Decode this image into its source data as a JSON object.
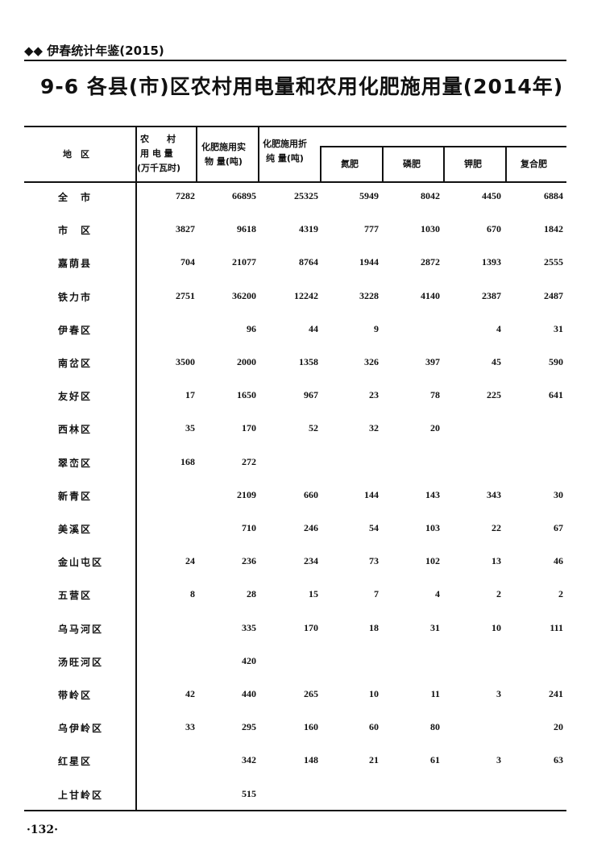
{
  "running_head": "◆◆ 伊春统计年鉴(2015)",
  "title": "9-6  各县(市)区农村用电量和农用化肥施用量(2014年)",
  "headers": {
    "region": "地　区",
    "electricity_line1": "农　　村",
    "electricity_line2": "用 电 量",
    "electricity_line3": "(万千瓦时)",
    "fert_actual_line1": "化肥施用实",
    "fert_actual_line2": "物 量(吨)",
    "fert_pure_line1": "化肥施用折",
    "fert_pure_line2": "纯 量(吨)",
    "nitrogen": "氮肥",
    "phosphate": "磷肥",
    "potash": "钾肥",
    "compound": "复合肥"
  },
  "rows": [
    {
      "region": "全　市",
      "values": [
        "7282",
        "66895",
        "25325",
        "5949",
        "8042",
        "4450",
        "6884"
      ]
    },
    {
      "region": "市　区",
      "values": [
        "3827",
        "9618",
        "4319",
        "777",
        "1030",
        "670",
        "1842"
      ]
    },
    {
      "region": "嘉荫县",
      "values": [
        "704",
        "21077",
        "8764",
        "1944",
        "2872",
        "1393",
        "2555"
      ]
    },
    {
      "region": "铁力市",
      "values": [
        "2751",
        "36200",
        "12242",
        "3228",
        "4140",
        "2387",
        "2487"
      ]
    },
    {
      "region": "伊春区",
      "values": [
        "",
        "96",
        "44",
        "9",
        "",
        "4",
        "31"
      ]
    },
    {
      "region": "南岔区",
      "values": [
        "3500",
        "2000",
        "1358",
        "326",
        "397",
        "45",
        "590"
      ]
    },
    {
      "region": "友好区",
      "values": [
        "17",
        "1650",
        "967",
        "23",
        "78",
        "225",
        "641"
      ]
    },
    {
      "region": "西林区",
      "values": [
        "35",
        "170",
        "52",
        "32",
        "20",
        "",
        ""
      ]
    },
    {
      "region": "翠峦区",
      "values": [
        "168",
        "272",
        "",
        "",
        "",
        "",
        ""
      ]
    },
    {
      "region": "新青区",
      "values": [
        "",
        "2109",
        "660",
        "144",
        "143",
        "343",
        "30"
      ]
    },
    {
      "region": "美溪区",
      "values": [
        "",
        "710",
        "246",
        "54",
        "103",
        "22",
        "67"
      ]
    },
    {
      "region": "金山屯区",
      "values": [
        "24",
        "236",
        "234",
        "73",
        "102",
        "13",
        "46"
      ]
    },
    {
      "region": "五营区",
      "values": [
        "8",
        "28",
        "15",
        "7",
        "4",
        "2",
        "2"
      ]
    },
    {
      "region": "乌马河区",
      "values": [
        "",
        "335",
        "170",
        "18",
        "31",
        "10",
        "111"
      ]
    },
    {
      "region": "汤旺河区",
      "values": [
        "",
        "420",
        "",
        "",
        "",
        "",
        ""
      ]
    },
    {
      "region": "带岭区",
      "values": [
        "42",
        "440",
        "265",
        "10",
        "11",
        "3",
        "241"
      ]
    },
    {
      "region": "乌伊岭区",
      "values": [
        "33",
        "295",
        "160",
        "60",
        "80",
        "",
        "20"
      ]
    },
    {
      "region": "红星区",
      "values": [
        "",
        "342",
        "148",
        "21",
        "61",
        "3",
        "63"
      ]
    },
    {
      "region": "上甘岭区",
      "values": [
        "",
        "515",
        "",
        "",
        "",
        "",
        ""
      ]
    }
  ],
  "page_number": "·132·"
}
